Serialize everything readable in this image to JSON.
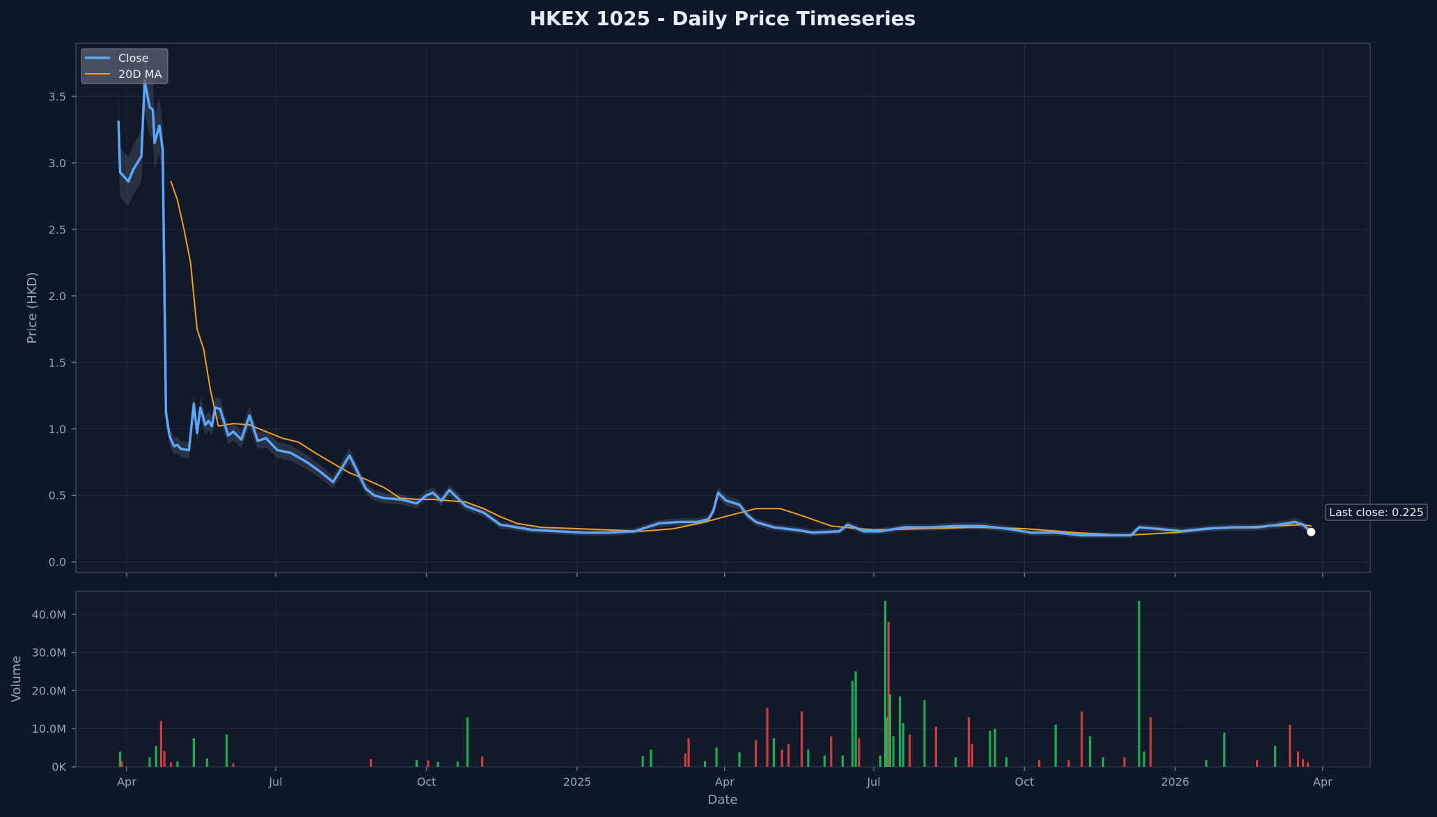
{
  "chart_data": {
    "type": "line",
    "title": "HKEX 1025 - Daily Price Timeseries",
    "xlabel": "Date",
    "ylabel": "Price (HKD)",
    "ylim": [
      -0.08,
      3.9
    ],
    "yticks": [
      "0.0",
      "0.5",
      "1.0",
      "1.5",
      "2.0",
      "2.5",
      "3.0",
      "3.5"
    ],
    "xlim": [
      "2024-03-01",
      "2026-04-30"
    ],
    "xticks": [
      {
        "date": "2024-04-01",
        "label": "Apr"
      },
      {
        "date": "2024-07-01",
        "label": "Jul"
      },
      {
        "date": "2024-10-01",
        "label": "Oct"
      },
      {
        "date": "2025-01-01",
        "label": "2025"
      },
      {
        "date": "2025-04-01",
        "label": "Apr"
      },
      {
        "date": "2025-07-01",
        "label": "Jul"
      },
      {
        "date": "2025-10-01",
        "label": "Oct"
      },
      {
        "date": "2026-01-01",
        "label": "2026"
      },
      {
        "date": "2026-04-01",
        "label": "Apr"
      }
    ],
    "grid": true,
    "legend_position": "top-left",
    "last_close_annotation": "Last close: 0.225",
    "last_close": {
      "date": "2026-03-25",
      "value": 0.225
    },
    "series": [
      {
        "name": "Close",
        "color": "#5fa5f9",
        "x": [
          "2024-03-27",
          "2024-03-28",
          "2024-04-02",
          "2024-04-05",
          "2024-04-10",
          "2024-04-12",
          "2024-04-15",
          "2024-04-17",
          "2024-04-18",
          "2024-04-21",
          "2024-04-23",
          "2024-04-25",
          "2024-04-27",
          "2024-04-28",
          "2024-04-30",
          "2024-05-02",
          "2024-05-04",
          "2024-05-09",
          "2024-05-12",
          "2024-05-14",
          "2024-05-16",
          "2024-05-19",
          "2024-05-21",
          "2024-05-23",
          "2024-05-25",
          "2024-05-28",
          "2024-06-02",
          "2024-06-05",
          "2024-06-10",
          "2024-06-15",
          "2024-06-20",
          "2024-06-25",
          "2024-07-02",
          "2024-07-10",
          "2024-07-20",
          "2024-07-28",
          "2024-08-05",
          "2024-08-15",
          "2024-08-25",
          "2024-08-28",
          "2024-08-30",
          "2024-09-05",
          "2024-09-15",
          "2024-09-25",
          "2024-10-01",
          "2024-10-05",
          "2024-10-10",
          "2024-10-15",
          "2024-10-25",
          "2024-11-05",
          "2024-11-15",
          "2024-11-25",
          "2024-12-05",
          "2024-12-20",
          "2025-01-05",
          "2025-01-20",
          "2025-02-05",
          "2025-02-20",
          "2025-03-05",
          "2025-03-15",
          "2025-03-22",
          "2025-03-25",
          "2025-03-28",
          "2025-04-02",
          "2025-04-10",
          "2025-04-15",
          "2025-04-20",
          "2025-05-01",
          "2025-05-15",
          "2025-05-25",
          "2025-06-10",
          "2025-06-15",
          "2025-06-25",
          "2025-07-05",
          "2025-07-20",
          "2025-08-05",
          "2025-08-20",
          "2025-09-05",
          "2025-09-20",
          "2025-10-05",
          "2025-10-20",
          "2025-11-05",
          "2025-11-20",
          "2025-12-05",
          "2025-12-10",
          "2025-12-20",
          "2026-01-05",
          "2026-01-20",
          "2026-02-05",
          "2026-02-20",
          "2026-03-05",
          "2026-03-15",
          "2026-03-20",
          "2026-03-25"
        ],
        "y": [
          3.31,
          2.93,
          2.86,
          2.95,
          3.05,
          3.62,
          3.42,
          3.4,
          3.15,
          3.28,
          3.1,
          1.12,
          0.96,
          0.92,
          0.87,
          0.88,
          0.85,
          0.84,
          1.19,
          0.97,
          1.16,
          1.03,
          1.06,
          1.02,
          1.16,
          1.15,
          0.95,
          0.98,
          0.92,
          1.1,
          0.91,
          0.93,
          0.84,
          0.82,
          0.75,
          0.68,
          0.6,
          0.8,
          0.55,
          0.52,
          0.5,
          0.48,
          0.47,
          0.44,
          0.5,
          0.52,
          0.46,
          0.54,
          0.42,
          0.37,
          0.28,
          0.26,
          0.24,
          0.23,
          0.22,
          0.22,
          0.23,
          0.29,
          0.3,
          0.3,
          0.32,
          0.38,
          0.52,
          0.46,
          0.43,
          0.35,
          0.3,
          0.26,
          0.24,
          0.22,
          0.23,
          0.28,
          0.23,
          0.23,
          0.26,
          0.26,
          0.27,
          0.27,
          0.25,
          0.22,
          0.22,
          0.2,
          0.2,
          0.2,
          0.26,
          0.25,
          0.23,
          0.25,
          0.26,
          0.26,
          0.28,
          0.3,
          0.28,
          0.225
        ]
      },
      {
        "name": "20D MA",
        "color": "#f0a020",
        "x": [
          "2024-04-28",
          "2024-05-02",
          "2024-05-06",
          "2024-05-10",
          "2024-05-14",
          "2024-05-18",
          "2024-05-22",
          "2024-05-27",
          "2024-06-05",
          "2024-06-15",
          "2024-06-25",
          "2024-07-05",
          "2024-07-15",
          "2024-07-25",
          "2024-08-05",
          "2024-08-15",
          "2024-08-25",
          "2024-09-05",
          "2024-09-15",
          "2024-09-25",
          "2024-10-05",
          "2024-10-15",
          "2024-10-25",
          "2024-11-05",
          "2024-11-15",
          "2024-11-25",
          "2024-12-10",
          "2025-01-01",
          "2025-01-20",
          "2025-02-10",
          "2025-03-01",
          "2025-03-20",
          "2025-04-01",
          "2025-04-20",
          "2025-05-05",
          "2025-05-20",
          "2025-06-05",
          "2025-07-01",
          "2025-08-01",
          "2025-09-01",
          "2025-10-01",
          "2025-11-01",
          "2025-12-01",
          "2026-01-01",
          "2026-02-01",
          "2026-03-01",
          "2026-03-20",
          "2026-03-25"
        ],
        "y": [
          2.86,
          2.72,
          2.5,
          2.25,
          1.75,
          1.6,
          1.3,
          1.02,
          1.04,
          1.03,
          0.98,
          0.93,
          0.9,
          0.82,
          0.74,
          0.67,
          0.62,
          0.56,
          0.48,
          0.47,
          0.47,
          0.46,
          0.45,
          0.4,
          0.34,
          0.29,
          0.26,
          0.25,
          0.24,
          0.23,
          0.25,
          0.3,
          0.34,
          0.4,
          0.4,
          0.34,
          0.27,
          0.24,
          0.25,
          0.26,
          0.25,
          0.22,
          0.2,
          0.22,
          0.26,
          0.27,
          0.28,
          0.27
        ]
      }
    ],
    "volume": {
      "ylabel": "Volume",
      "ylim": [
        0,
        46000000
      ],
      "yticks": [
        "0K",
        "10.0M",
        "20.0M",
        "30.0M",
        "40.0M"
      ],
      "up_color": "#22c55e",
      "down_color": "#ef4444",
      "bars": [
        {
          "date": "2024-03-28",
          "v": 4000000,
          "up": true
        },
        {
          "date": "2024-03-29",
          "v": 1500000,
          "up": false
        },
        {
          "date": "2024-04-15",
          "v": 2500000,
          "up": true
        },
        {
          "date": "2024-04-19",
          "v": 5500000,
          "up": true
        },
        {
          "date": "2024-04-22",
          "v": 12000000,
          "up": false
        },
        {
          "date": "2024-04-24",
          "v": 4200000,
          "up": false
        },
        {
          "date": "2024-04-28",
          "v": 1200000,
          "up": false
        },
        {
          "date": "2024-05-02",
          "v": 1500000,
          "up": true
        },
        {
          "date": "2024-05-12",
          "v": 7500000,
          "up": true
        },
        {
          "date": "2024-05-20",
          "v": 2200000,
          "up": true
        },
        {
          "date": "2024-06-01",
          "v": 8500000,
          "up": true
        },
        {
          "date": "2024-06-05",
          "v": 900000,
          "up": false
        },
        {
          "date": "2024-08-28",
          "v": 2000000,
          "up": false
        },
        {
          "date": "2024-09-25",
          "v": 1800000,
          "up": true
        },
        {
          "date": "2024-10-02",
          "v": 1700000,
          "up": false
        },
        {
          "date": "2024-10-08",
          "v": 1300000,
          "up": true
        },
        {
          "date": "2024-10-20",
          "v": 1400000,
          "up": true
        },
        {
          "date": "2024-10-26",
          "v": 13000000,
          "up": true
        },
        {
          "date": "2024-11-04",
          "v": 2800000,
          "up": false
        },
        {
          "date": "2025-02-10",
          "v": 2800000,
          "up": true
        },
        {
          "date": "2025-02-15",
          "v": 4500000,
          "up": true
        },
        {
          "date": "2025-03-08",
          "v": 3500000,
          "up": false
        },
        {
          "date": "2025-03-10",
          "v": 7500000,
          "up": false
        },
        {
          "date": "2025-03-20",
          "v": 1500000,
          "up": true
        },
        {
          "date": "2025-03-27",
          "v": 5000000,
          "up": true
        },
        {
          "date": "2025-04-10",
          "v": 3800000,
          "up": true
        },
        {
          "date": "2025-04-20",
          "v": 7000000,
          "up": false
        },
        {
          "date": "2025-04-27",
          "v": 15500000,
          "up": false
        },
        {
          "date": "2025-05-01",
          "v": 7500000,
          "up": true
        },
        {
          "date": "2025-05-06",
          "v": 4500000,
          "up": false
        },
        {
          "date": "2025-05-10",
          "v": 6000000,
          "up": false
        },
        {
          "date": "2025-05-18",
          "v": 14500000,
          "up": false
        },
        {
          "date": "2025-05-22",
          "v": 4500000,
          "up": true
        },
        {
          "date": "2025-06-01",
          "v": 3000000,
          "up": true
        },
        {
          "date": "2025-06-05",
          "v": 8000000,
          "up": false
        },
        {
          "date": "2025-06-12",
          "v": 3000000,
          "up": true
        },
        {
          "date": "2025-06-18",
          "v": 22500000,
          "up": true
        },
        {
          "date": "2025-06-20",
          "v": 25000000,
          "up": true
        },
        {
          "date": "2025-06-22",
          "v": 7500000,
          "up": false
        },
        {
          "date": "2025-07-05",
          "v": 3000000,
          "up": true
        },
        {
          "date": "2025-07-08",
          "v": 43500000,
          "up": true
        },
        {
          "date": "2025-07-09",
          "v": 13000000,
          "up": true
        },
        {
          "date": "2025-07-10",
          "v": 38000000,
          "up": false
        },
        {
          "date": "2025-07-11",
          "v": 19000000,
          "up": true
        },
        {
          "date": "2025-07-13",
          "v": 8000000,
          "up": true
        },
        {
          "date": "2025-07-17",
          "v": 18500000,
          "up": true
        },
        {
          "date": "2025-07-19",
          "v": 11500000,
          "up": true
        },
        {
          "date": "2025-07-23",
          "v": 8500000,
          "up": false
        },
        {
          "date": "2025-08-01",
          "v": 17500000,
          "up": true
        },
        {
          "date": "2025-08-08",
          "v": 10500000,
          "up": false
        },
        {
          "date": "2025-08-20",
          "v": 2500000,
          "up": true
        },
        {
          "date": "2025-08-28",
          "v": 13000000,
          "up": false
        },
        {
          "date": "2025-08-30",
          "v": 6000000,
          "up": false
        },
        {
          "date": "2025-09-10",
          "v": 9500000,
          "up": true
        },
        {
          "date": "2025-09-13",
          "v": 10000000,
          "up": true
        },
        {
          "date": "2025-09-20",
          "v": 2500000,
          "up": true
        },
        {
          "date": "2025-10-10",
          "v": 1800000,
          "up": false
        },
        {
          "date": "2025-10-20",
          "v": 11000000,
          "up": true
        },
        {
          "date": "2025-10-28",
          "v": 1800000,
          "up": false
        },
        {
          "date": "2025-11-05",
          "v": 14500000,
          "up": false
        },
        {
          "date": "2025-11-10",
          "v": 8000000,
          "up": true
        },
        {
          "date": "2025-11-18",
          "v": 2500000,
          "up": true
        },
        {
          "date": "2025-12-01",
          "v": 2500000,
          "up": false
        },
        {
          "date": "2025-12-10",
          "v": 43500000,
          "up": true
        },
        {
          "date": "2025-12-13",
          "v": 4000000,
          "up": true
        },
        {
          "date": "2025-12-17",
          "v": 13000000,
          "up": false
        },
        {
          "date": "2026-01-20",
          "v": 1800000,
          "up": true
        },
        {
          "date": "2026-01-31",
          "v": 9000000,
          "up": true
        },
        {
          "date": "2026-02-20",
          "v": 1800000,
          "up": false
        },
        {
          "date": "2026-03-03",
          "v": 5500000,
          "up": true
        },
        {
          "date": "2026-03-12",
          "v": 11000000,
          "up": false
        },
        {
          "date": "2026-03-17",
          "v": 4000000,
          "up": false
        },
        {
          "date": "2026-03-20",
          "v": 2000000,
          "up": false
        },
        {
          "date": "2026-03-23",
          "v": 1200000,
          "up": false
        }
      ]
    }
  }
}
